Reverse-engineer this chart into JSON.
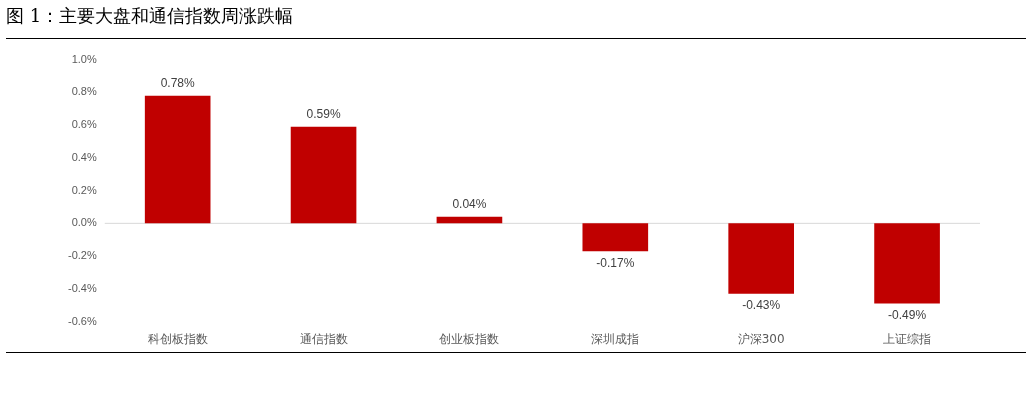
{
  "chart_data": {
    "type": "bar",
    "title": "图 1：主要大盘和通信指数周涨跌幅",
    "categories": [
      "科创板指数",
      "通信指数",
      "创业板指数",
      "深圳成指",
      "沪深300",
      "上证综指"
    ],
    "values": [
      0.78,
      0.59,
      0.04,
      -0.17,
      -0.43,
      -0.49
    ],
    "value_labels": [
      "0.78%",
      "0.59%",
      "0.04%",
      "-0.17%",
      "-0.43%",
      "-0.49%"
    ],
    "color": "#c00000",
    "ylim": [
      -0.6,
      1.0
    ],
    "yticks": [
      {
        "value": -0.6,
        "label": "-0.6%"
      },
      {
        "value": -0.4,
        "label": "-0.4%"
      },
      {
        "value": -0.2,
        "label": "-0.2%"
      },
      {
        "value": 0,
        "label": "0.0%"
      },
      {
        "value": 0.2,
        "label": "0.2%"
      },
      {
        "value": 0.4,
        "label": "0.4%"
      },
      {
        "value": 0.6,
        "label": "0.6%"
      },
      {
        "value": 0.8,
        "label": "0.8%"
      },
      {
        "value": 1.0,
        "label": "1.0%"
      }
    ],
    "ref_lines": [
      {
        "axis": "y",
        "value": 0,
        "color": "#d9d9d9"
      }
    ],
    "grid": false,
    "legend": false
  }
}
